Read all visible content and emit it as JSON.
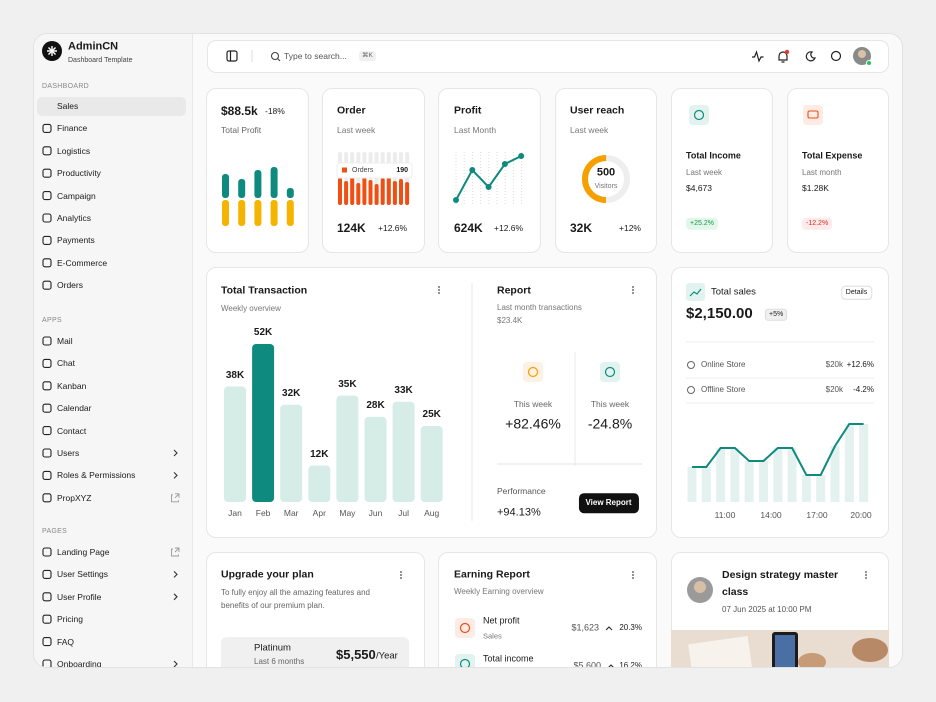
{
  "brand": {
    "name": "AdminCN",
    "subtitle": "Dashboard Template"
  },
  "sidebar": {
    "sections": [
      {
        "label": "DASHBOARD",
        "items": [
          "Sales",
          "Finance",
          "Logistics",
          "Productivity",
          "Campaign",
          "Analytics",
          "Payments",
          "E-Commerce",
          "Orders"
        ]
      },
      {
        "label": "APPS",
        "items": [
          "Mail",
          "Chat",
          "Kanban",
          "Calendar",
          "Contact",
          "Users",
          "Roles & Permissions",
          "PropXYZ"
        ]
      },
      {
        "label": "PAGES",
        "items": [
          "Landing Page",
          "User Settings",
          "User Profile",
          "Pricing",
          "FAQ",
          "Onboarding"
        ]
      }
    ]
  },
  "search": {
    "placeholder": "Type to search...",
    "shortcut": "⌘K"
  },
  "profit_card": {
    "value": "$88.5k",
    "change": "-18%",
    "label": "Total Profit",
    "spark": {
      "series": [
        {
          "color": "#f5b400",
          "values": [
            26,
            26,
            26,
            26,
            26
          ]
        },
        {
          "color": "#0f8a7e",
          "values": [
            24,
            19,
            28,
            31,
            10
          ]
        }
      ]
    }
  },
  "order_card": {
    "title": "Order",
    "subtitle": "Last week",
    "value": "124K",
    "change": "+12.6%",
    "tooltip": {
      "label": "Orders",
      "value": 190
    },
    "spark": {
      "color": "#f04e12",
      "values": [
        27,
        24,
        30,
        22,
        28,
        25,
        21,
        27,
        29,
        24,
        26,
        23
      ]
    }
  },
  "profit_line_card": {
    "title": "Profit",
    "subtitle": "Last Month",
    "value": "624K",
    "change": "+12.6%",
    "spark": {
      "color": "#0f8a7e",
      "values": [
        2,
        32,
        15,
        38,
        46
      ]
    }
  },
  "reach_card": {
    "title": "User reach",
    "subtitle": "Last week",
    "value": "32K",
    "change": "+12%",
    "ring": {
      "value": 500,
      "label": "Visitors",
      "percent": 50,
      "color": "#f5a000"
    }
  },
  "income_card": {
    "title": "Total Income",
    "subtitle": "Last week",
    "amount": "$4,673",
    "badge": "+25.2%"
  },
  "expense_card": {
    "title": "Total Expense",
    "subtitle": "Last month",
    "amount": "$1.28K",
    "badge": "-12.2%"
  },
  "transactions": {
    "title": "Total Transaction",
    "subtitle": "Weekly overview",
    "categories": [
      "Jan",
      "Feb",
      "Mar",
      "Apr",
      "May",
      "Jun",
      "Jul",
      "Aug"
    ],
    "values": [
      38000,
      52000,
      32000,
      12000,
      35000,
      28000,
      33000,
      25000
    ],
    "value_labels": [
      "38K",
      "52K",
      "32K",
      "12K",
      "35K",
      "28K",
      "33K",
      "25K"
    ],
    "colors": [
      "#d5ece7",
      "#0f8a7e",
      "#d5ece7",
      "#d5ece7",
      "#d5ece7",
      "#d5ece7",
      "#d5ece7",
      "#d5ece7"
    ]
  },
  "report": {
    "title": "Report",
    "subtitle": "Last month transactions",
    "amount": "$23.4K",
    "stats": [
      {
        "label": "This week",
        "value": "+82.46%"
      },
      {
        "label": "This week",
        "value": "-24.8%"
      }
    ],
    "performance_label": "Performance",
    "performance": "+94.13%",
    "button": "View Report"
  },
  "total_sales": {
    "title": "Total sales",
    "button": "Details",
    "amount": "$2,150.00",
    "badge": "+5%",
    "stores": [
      {
        "name": "Online Store",
        "amount": "$20k",
        "change": "+12.6%"
      },
      {
        "name": "Offline Store",
        "amount": "$20k",
        "change": "-4.2%"
      }
    ],
    "chart": {
      "x_labels": [
        "11:00",
        "14:00",
        "17:00",
        "20:00"
      ],
      "values": [
        35,
        35,
        54,
        54,
        41,
        41,
        54,
        54,
        27,
        27,
        56,
        78,
        78
      ],
      "color": "#0f8a7e",
      "bar_color": "#e3f2ef"
    }
  },
  "upgrade": {
    "title": "Upgrade your plan",
    "description": "To fully enjoy all the amazing features and benefits of our premium plan.",
    "plan": {
      "name": "Platinum",
      "period": "Last 6 months",
      "price": "$5,550",
      "unit": "/Year"
    }
  },
  "earning": {
    "title": "Earning Report",
    "subtitle": "Weekly Earning overview",
    "rows": [
      {
        "name": "Net profit",
        "sub": "Sales",
        "amount": "$1,623",
        "change": "20.3%"
      },
      {
        "name": "Total income",
        "amount": "$5,600",
        "change": "16.2%"
      }
    ]
  },
  "course": {
    "title": "Design strategy master class",
    "date": "07 Jun 2025 at 10:00 PM"
  }
}
